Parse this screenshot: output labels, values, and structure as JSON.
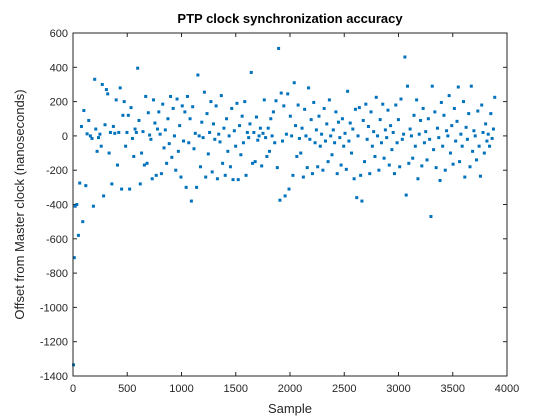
{
  "chart_data": {
    "type": "scatter",
    "title": "PTP clock synchronization accuracy",
    "xlabel": "Sample",
    "ylabel": "Offset from Master clock (nanoseconds)",
    "xlim": [
      0,
      4000
    ],
    "ylim": [
      -1400,
      600
    ],
    "xticks": [
      0,
      500,
      1000,
      1500,
      2000,
      2500,
      3000,
      3500,
      4000
    ],
    "yticks": [
      600,
      400,
      200,
      0,
      -200,
      -400,
      -600,
      -800,
      -1000,
      -1200,
      -1400
    ],
    "grid": false,
    "marker_color": "#0072bd",
    "series": [
      {
        "points": [
          [
            5,
            -1335
          ],
          [
            12,
            -710
          ],
          [
            20,
            -410
          ],
          [
            35,
            -400
          ],
          [
            50,
            -580
          ],
          [
            62,
            -275
          ],
          [
            78,
            55
          ],
          [
            90,
            -500
          ],
          [
            100,
            148
          ],
          [
            118,
            -290
          ],
          [
            130,
            12
          ],
          [
            145,
            90
          ],
          [
            160,
            0
          ],
          [
            175,
            -15
          ],
          [
            188,
            -410
          ],
          [
            200,
            330
          ],
          [
            210,
            40
          ],
          [
            222,
            -90
          ],
          [
            235,
            -10
          ],
          [
            248,
            10
          ],
          [
            260,
            -60
          ],
          [
            270,
            300
          ],
          [
            282,
            -350
          ],
          [
            295,
            65
          ],
          [
            308,
            270
          ],
          [
            320,
            245
          ],
          [
            333,
            -100
          ],
          [
            345,
            20
          ],
          [
            358,
            -280
          ],
          [
            372,
            55
          ],
          [
            385,
            15
          ],
          [
            398,
            210
          ],
          [
            410,
            -170
          ],
          [
            422,
            20
          ],
          [
            435,
            280
          ],
          [
            448,
            -310
          ],
          [
            460,
            120
          ],
          [
            472,
            200
          ],
          [
            485,
            -60
          ],
          [
            497,
            20
          ],
          [
            510,
            120
          ],
          [
            522,
            -310
          ],
          [
            535,
            165
          ],
          [
            548,
            -15
          ],
          [
            560,
            -120
          ],
          [
            572,
            40
          ],
          [
            584,
            20
          ],
          [
            596,
            395
          ],
          [
            608,
            90
          ],
          [
            620,
            -280
          ],
          [
            632,
            -100
          ],
          [
            645,
            25
          ],
          [
            658,
            -170
          ],
          [
            670,
            230
          ],
          [
            682,
            -160
          ],
          [
            694,
            135
          ],
          [
            706,
            5
          ],
          [
            718,
            -20
          ],
          [
            730,
            -250
          ],
          [
            742,
            210
          ],
          [
            755,
            75
          ],
          [
            767,
            -230
          ],
          [
            779,
            40
          ],
          [
            791,
            140
          ],
          [
            803,
            10
          ],
          [
            815,
            -220
          ],
          [
            827,
            185
          ],
          [
            839,
            -70
          ],
          [
            851,
            35
          ],
          [
            863,
            -160
          ],
          [
            875,
            100
          ],
          [
            887,
            -45
          ],
          [
            899,
            230
          ],
          [
            911,
            -125
          ],
          [
            923,
            160
          ],
          [
            935,
            0
          ],
          [
            947,
            -200
          ],
          [
            959,
            215
          ],
          [
            971,
            -90
          ],
          [
            983,
            60
          ],
          [
            995,
            -240
          ],
          [
            1007,
            175
          ],
          [
            1019,
            -30
          ],
          [
            1031,
            140
          ],
          [
            1043,
            -300
          ],
          [
            1055,
            230
          ],
          [
            1067,
            -40
          ],
          [
            1079,
            100
          ],
          [
            1091,
            -380
          ],
          [
            1103,
            170
          ],
          [
            1115,
            -75
          ],
          [
            1127,
            15
          ],
          [
            1139,
            -300
          ],
          [
            1151,
            355
          ],
          [
            1163,
            0
          ],
          [
            1175,
            -180
          ],
          [
            1187,
            80
          ],
          [
            1199,
            -10
          ],
          [
            1211,
            255
          ],
          [
            1223,
            -240
          ],
          [
            1235,
            130
          ],
          [
            1247,
            -105
          ],
          [
            1259,
            20
          ],
          [
            1271,
            200
          ],
          [
            1283,
            -210
          ],
          [
            1295,
            70
          ],
          [
            1307,
            -20
          ],
          [
            1319,
            175
          ],
          [
            1331,
            -250
          ],
          [
            1343,
            10
          ],
          [
            1355,
            -35
          ],
          [
            1367,
            235
          ],
          [
            1379,
            -160
          ],
          [
            1391,
            45
          ],
          [
            1403,
            -230
          ],
          [
            1415,
            100
          ],
          [
            1427,
            -90
          ],
          [
            1439,
            0
          ],
          [
            1451,
            -180
          ],
          [
            1463,
            160
          ],
          [
            1475,
            -255
          ],
          [
            1487,
            30
          ],
          [
            1499,
            -60
          ],
          [
            1511,
            190
          ],
          [
            1523,
            -255
          ],
          [
            1535,
            60
          ],
          [
            1547,
            -110
          ],
          [
            1559,
            115
          ],
          [
            1571,
            -40
          ],
          [
            1583,
            200
          ],
          [
            1595,
            -230
          ],
          [
            1607,
            20
          ],
          [
            1619,
            -10
          ],
          [
            1631,
            70
          ],
          [
            1643,
            370
          ],
          [
            1655,
            -160
          ],
          [
            1667,
            20
          ],
          [
            1679,
            -150
          ],
          [
            1691,
            110
          ],
          [
            1703,
            -25
          ],
          [
            1715,
            0
          ],
          [
            1727,
            45
          ],
          [
            1739,
            -175
          ],
          [
            1751,
            15
          ],
          [
            1763,
            210
          ],
          [
            1775,
            -10
          ],
          [
            1787,
            -120
          ],
          [
            1799,
            45
          ],
          [
            1811,
            -90
          ],
          [
            1823,
            100
          ],
          [
            1835,
            0
          ],
          [
            1847,
            140
          ],
          [
            1859,
            -40
          ],
          [
            1871,
            205
          ],
          [
            1883,
            -185
          ],
          [
            1895,
            510
          ],
          [
            1907,
            -375
          ],
          [
            1919,
            250
          ],
          [
            1931,
            -30
          ],
          [
            1943,
            175
          ],
          [
            1955,
            -350
          ],
          [
            1967,
            10
          ],
          [
            1979,
            245
          ],
          [
            1991,
            -310
          ],
          [
            2003,
            115
          ],
          [
            2015,
            0
          ],
          [
            2027,
            -230
          ],
          [
            2039,
            310
          ],
          [
            2051,
            60
          ],
          [
            2063,
            -120
          ],
          [
            2075,
            180
          ],
          [
            2087,
            -15
          ],
          [
            2099,
            -100
          ],
          [
            2111,
            45
          ],
          [
            2123,
            -240
          ],
          [
            2135,
            155
          ],
          [
            2147,
            0
          ],
          [
            2159,
            -185
          ],
          [
            2171,
            280
          ],
          [
            2183,
            -20
          ],
          [
            2195,
            95
          ],
          [
            2207,
            -220
          ],
          [
            2219,
            195
          ],
          [
            2231,
            -40
          ],
          [
            2243,
            35
          ],
          [
            2255,
            -180
          ],
          [
            2267,
            115
          ],
          [
            2279,
            -60
          ],
          [
            2291,
            10
          ],
          [
            2303,
            -200
          ],
          [
            2315,
            160
          ],
          [
            2327,
            -30
          ],
          [
            2339,
            70
          ],
          [
            2351,
            -150
          ],
          [
            2363,
            210
          ],
          [
            2375,
            0
          ],
          [
            2387,
            -110
          ],
          [
            2399,
            35
          ],
          [
            2411,
            -40
          ],
          [
            2423,
            140
          ],
          [
            2435,
            -220
          ],
          [
            2447,
            80
          ],
          [
            2459,
            -10
          ],
          [
            2471,
            -170
          ],
          [
            2483,
            100
          ],
          [
            2495,
            -60
          ],
          [
            2507,
            15
          ],
          [
            2519,
            -195
          ],
          [
            2531,
            260
          ],
          [
            2543,
            -30
          ],
          [
            2555,
            75
          ],
          [
            2567,
            -100
          ],
          [
            2579,
            40
          ],
          [
            2591,
            -250
          ],
          [
            2603,
            155
          ],
          [
            2615,
            -360
          ],
          [
            2627,
            0
          ],
          [
            2639,
            165
          ],
          [
            2651,
            -230
          ],
          [
            2663,
            -380
          ],
          [
            2675,
            90
          ],
          [
            2687,
            -150
          ],
          [
            2699,
            185
          ],
          [
            2711,
            -20
          ],
          [
            2723,
            55
          ],
          [
            2735,
            -220
          ],
          [
            2747,
            140
          ],
          [
            2759,
            -60
          ],
          [
            2771,
            25
          ],
          [
            2783,
            -120
          ],
          [
            2795,
            225
          ],
          [
            2807,
            0
          ],
          [
            2819,
            -200
          ],
          [
            2831,
            95
          ],
          [
            2843,
            -40
          ],
          [
            2855,
            185
          ],
          [
            2867,
            -130
          ],
          [
            2879,
            35
          ],
          [
            2891,
            -10
          ],
          [
            2903,
            150
          ],
          [
            2915,
            -170
          ],
          [
            2927,
            60
          ],
          [
            2939,
            -80
          ],
          [
            2951,
            20
          ],
          [
            2963,
            -220
          ],
          [
            2975,
            180
          ],
          [
            2987,
            -40
          ],
          [
            2999,
            95
          ],
          [
            3011,
            -180
          ],
          [
            3023,
            215
          ],
          [
            3035,
            -20
          ],
          [
            3047,
            10
          ],
          [
            3059,
            460
          ],
          [
            3071,
            -345
          ],
          [
            3083,
            290
          ],
          [
            3095,
            -160
          ],
          [
            3107,
            40
          ],
          [
            3119,
            0
          ],
          [
            3131,
            -130
          ],
          [
            3143,
            120
          ],
          [
            3155,
            -60
          ],
          [
            3167,
            210
          ],
          [
            3179,
            -250
          ],
          [
            3191,
            10
          ],
          [
            3203,
            90
          ],
          [
            3215,
            -175
          ],
          [
            3227,
            160
          ],
          [
            3239,
            -40
          ],
          [
            3251,
            25
          ],
          [
            3263,
            -140
          ],
          [
            3275,
            100
          ],
          [
            3287,
            -20
          ],
          [
            3299,
            -470
          ],
          [
            3311,
            290
          ],
          [
            3323,
            -80
          ],
          [
            3335,
            140
          ],
          [
            3347,
            -185
          ],
          [
            3359,
            45
          ],
          [
            3371,
            -10
          ],
          [
            3383,
            -260
          ],
          [
            3395,
            195
          ],
          [
            3407,
            -60
          ],
          [
            3419,
            120
          ],
          [
            3431,
            -200
          ],
          [
            3443,
            30
          ],
          [
            3455,
            0
          ],
          [
            3467,
            235
          ],
          [
            3479,
            -100
          ],
          [
            3491,
            60
          ],
          [
            3503,
            -165
          ],
          [
            3515,
            160
          ],
          [
            3527,
            -30
          ],
          [
            3539,
            85
          ],
          [
            3551,
            285
          ],
          [
            3563,
            -150
          ],
          [
            3575,
            10
          ],
          [
            3587,
            -60
          ],
          [
            3599,
            200
          ],
          [
            3611,
            -240
          ],
          [
            3623,
            50
          ],
          [
            3635,
            -20
          ],
          [
            3647,
            130
          ],
          [
            3659,
            -180
          ],
          [
            3671,
            290
          ],
          [
            3683,
            -90
          ],
          [
            3695,
            30
          ],
          [
            3707,
            0
          ],
          [
            3719,
            -140
          ],
          [
            3731,
            145
          ],
          [
            3743,
            -60
          ],
          [
            3755,
            -235
          ],
          [
            3767,
            180
          ],
          [
            3779,
            20
          ],
          [
            3791,
            -100
          ],
          [
            3803,
            70
          ],
          [
            3815,
            -30
          ],
          [
            3827,
            10
          ],
          [
            3839,
            -60
          ],
          [
            3851,
            130
          ],
          [
            3863,
            -15
          ],
          [
            3875,
            40
          ],
          [
            3887,
            225
          ]
        ]
      }
    ]
  }
}
